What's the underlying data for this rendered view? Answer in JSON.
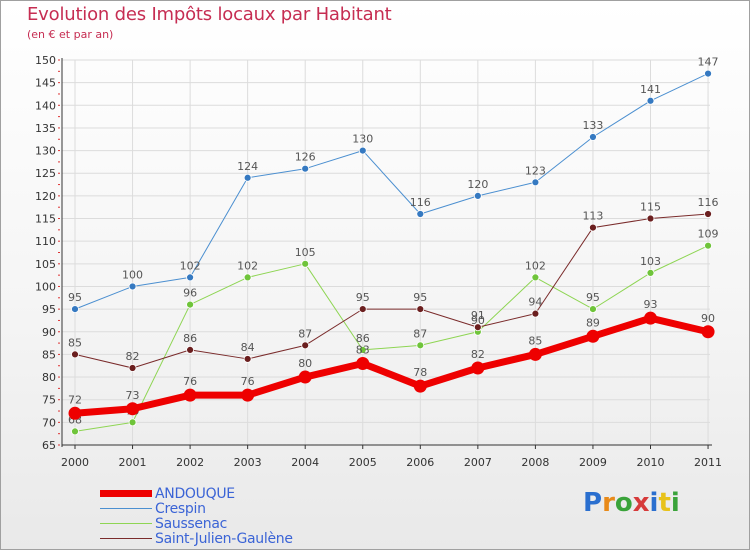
{
  "title": "Evolution des Impôts locaux par Habitant",
  "subtitle": "(en € et par an)",
  "logo": {
    "text": "Proxiti",
    "colors": [
      "#2a6fcf",
      "#e88a1a",
      "#3aa33a",
      "#d63a3a",
      "#2a6fcf",
      "#e8c21a",
      "#3aa33a"
    ]
  },
  "chart_data": {
    "type": "line",
    "title": "Evolution des Impôts locaux par Habitant",
    "subtitle": "(en € et par an)",
    "xlabel": "",
    "ylabel": "",
    "ylim": [
      65,
      150
    ],
    "ytick_step": 5,
    "yticks": [
      "65",
      "70",
      "75",
      "80",
      "85",
      "90",
      "95",
      "100",
      "105",
      "110",
      "115",
      "120",
      "125",
      "130",
      "135",
      "140",
      "145",
      "150"
    ],
    "categories": [
      "2000",
      "2001",
      "2002",
      "2003",
      "2004",
      "2005",
      "2006",
      "2007",
      "2008",
      "2009",
      "2010",
      "2011"
    ],
    "legend_position": "bottom-left",
    "series": [
      {
        "name": "Crespin",
        "color": "#4b8fd0",
        "dot": "#3579c1",
        "width": 1,
        "r": 3.5,
        "values": [
          95,
          100,
          102,
          124,
          126,
          130,
          116,
          120,
          123,
          133,
          141,
          147
        ],
        "labels": [
          "95",
          "100",
          "102",
          "124",
          "126",
          "130",
          "116",
          "120",
          "123",
          "133",
          "141",
          "147"
        ]
      },
      {
        "name": "Saussenac",
        "color": "#8ed553",
        "dot": "#6fc43a",
        "width": 1,
        "r": 3.5,
        "values": [
          68,
          70,
          96,
          102,
          105,
          86,
          87,
          90,
          102,
          95,
          103,
          109
        ],
        "labels": [
          "68",
          "70",
          "96",
          "102",
          "105",
          "86",
          "87",
          "90",
          "102",
          "95",
          "103",
          "109"
        ]
      },
      {
        "name": "Saint-Julien-Gaulène",
        "color": "#7a2b2b",
        "dot": "#6b1f1f",
        "width": 1,
        "r": 3.5,
        "values": [
          85,
          82,
          86,
          84,
          87,
          95,
          95,
          91,
          94,
          113,
          115,
          116
        ],
        "labels": [
          "85",
          "82",
          "86",
          "84",
          "87",
          "95",
          "95",
          "91",
          "94",
          "113",
          "115",
          "116"
        ]
      },
      {
        "name": "ANDOUQUE",
        "color": "#ee0000",
        "dot": "#ee0000",
        "width": 7,
        "r": 6.5,
        "values": [
          72,
          73,
          76,
          76,
          80,
          83,
          78,
          82,
          85,
          89,
          93,
          90
        ],
        "labels": [
          "72",
          "73",
          "76",
          "76",
          "80",
          "83",
          "78",
          "82",
          "85",
          "89",
          "93",
          "90"
        ]
      }
    ]
  },
  "legend": [
    {
      "label": "ANDOUQUE",
      "color": "#ee0000",
      "thickness": 7
    },
    {
      "label": "Crespin",
      "color": "#4b8fd0",
      "thickness": 1
    },
    {
      "label": "Saussenac",
      "color": "#8ed553",
      "thickness": 1
    },
    {
      "label": "Saint-Julien-Gaulène",
      "color": "#7a2b2b",
      "thickness": 1
    }
  ]
}
